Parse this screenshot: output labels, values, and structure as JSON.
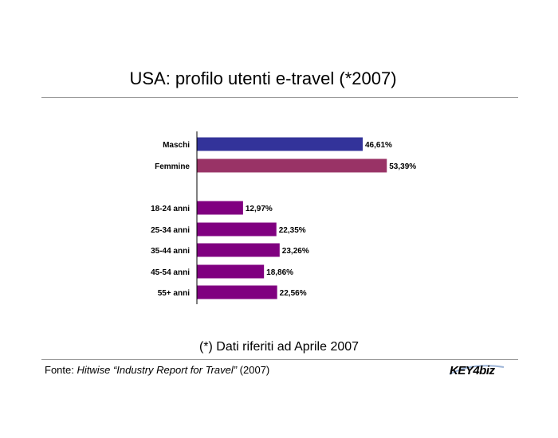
{
  "title": "USA: profilo utenti e-travel (*2007)",
  "note": "(*) Dati riferiti ad Aprile 2007",
  "source": {
    "prefix": "Fonte: ",
    "italic": "Hitwise “Industry Report for Travel”",
    "suffix": " (2007)"
  },
  "logo": {
    "text": "KEY4biz"
  },
  "colors": {
    "male": "#33339a",
    "female": "#993366",
    "age": "#800080"
  },
  "chart_data": {
    "type": "bar",
    "orientation": "horizontal",
    "categories": [
      "Maschi",
      "Femmine",
      "18-24 anni",
      "25-34 anni",
      "35-44 anni",
      "45-54 anni",
      "55+ anni"
    ],
    "values": [
      46.61,
      53.39,
      12.97,
      22.35,
      23.26,
      18.86,
      22.56
    ],
    "labels": [
      "46,61%",
      "53,39%",
      "12,97%",
      "22,35%",
      "23,26%",
      "18,86%",
      "22,56%"
    ],
    "groups": [
      "sesso",
      "sesso",
      "eta",
      "eta",
      "eta",
      "eta",
      "eta"
    ],
    "xlim": [
      0,
      100
    ],
    "grid": false,
    "legend": "none"
  }
}
